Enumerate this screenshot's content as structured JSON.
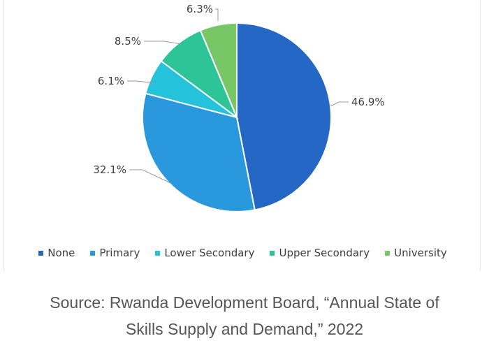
{
  "chart_data": {
    "type": "pie",
    "categories": [
      "None",
      "Primary",
      "Lower Secondary",
      "Upper Secondary",
      "University"
    ],
    "values": [
      46.9,
      32.1,
      6.1,
      8.5,
      6.3
    ],
    "labels": [
      "46.9%",
      "32.1%",
      "6.1%",
      "8.5%",
      "6.3%"
    ],
    "colors": [
      "#2467c4",
      "#2a98dc",
      "#24c2db",
      "#2dc497",
      "#77c766"
    ],
    "legend_position": "bottom",
    "start_angle": "12 o'clock",
    "direction": "clockwise"
  },
  "caption": {
    "line1": "Source: Rwanda Development Board, “Annual State of",
    "line2": "Skills Supply and Demand,” 2022"
  }
}
